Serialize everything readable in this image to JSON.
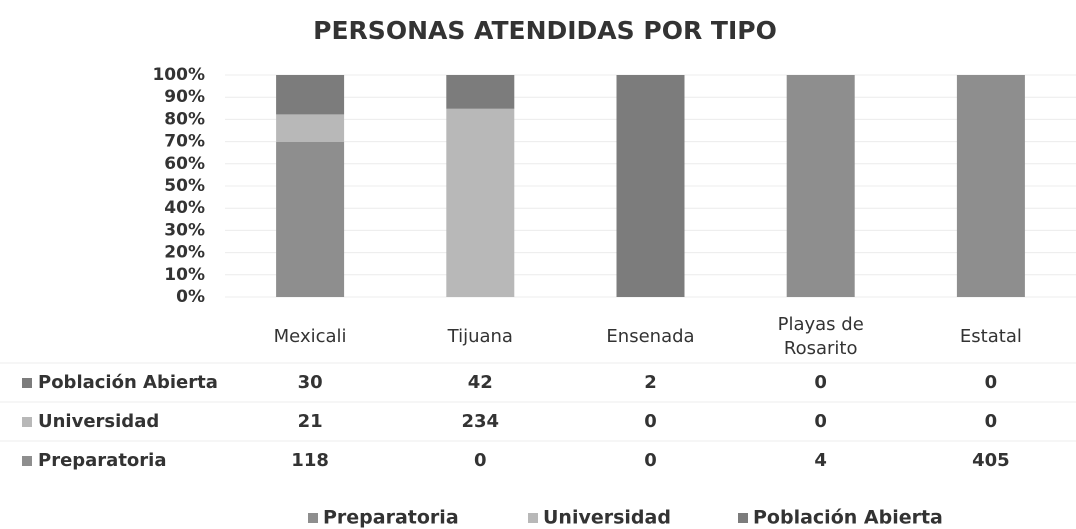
{
  "chart_data": {
    "type": "bar",
    "stacked": "percent",
    "title": "PERSONAS ATENDIDAS POR TIPO",
    "categories": [
      "Mexicali",
      "Tijuana",
      "Ensenada",
      "Playas de Rosarito",
      "Estatal"
    ],
    "series": [
      {
        "name": "Preparatoria",
        "color": "#8e8e8e",
        "values": [
          118,
          0,
          0,
          4,
          405
        ]
      },
      {
        "name": "Universidad",
        "color": "#b8b8b8",
        "values": [
          21,
          234,
          0,
          0,
          0
        ]
      },
      {
        "name": "Población Abierta",
        "color": "#7c7c7c",
        "values": [
          30,
          42,
          2,
          0,
          0
        ]
      }
    ],
    "ylim": [
      0,
      100
    ],
    "yticks": [
      {
        "value": 0,
        "label": "0%"
      },
      {
        "value": 10,
        "label": "10%"
      },
      {
        "value": 20,
        "label": "20%"
      },
      {
        "value": 30,
        "label": "30%"
      },
      {
        "value": 40,
        "label": "40%"
      },
      {
        "value": 50,
        "label": "50%"
      },
      {
        "value": 60,
        "label": "60%"
      },
      {
        "value": 70,
        "label": "70%"
      },
      {
        "value": 80,
        "label": "80%"
      },
      {
        "value": 90,
        "label": "90%"
      },
      {
        "value": 100,
        "label": "100%"
      }
    ],
    "grid": true,
    "data_table": true,
    "legend": "bottom"
  }
}
